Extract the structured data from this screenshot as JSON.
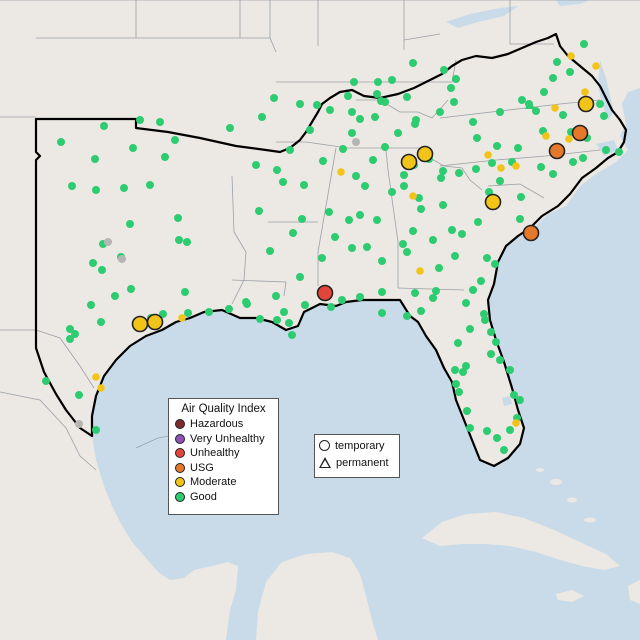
{
  "colors": {
    "water": "#c9dbe9",
    "land": "#ece8e3",
    "border": "#9aa0a8",
    "outline": "#000000",
    "hazardous": "#7e2a2a",
    "very_unhealthy": "#8f4fb5",
    "unhealthy": "#e2463a",
    "usg": "#e6782c",
    "moderate": "#f2c417",
    "good": "#2ecc71",
    "no_data": "#b5b5b5"
  },
  "legend": {
    "title": "Air Quality Index",
    "items": [
      {
        "key": "hazardous",
        "label": "Hazardous"
      },
      {
        "key": "very_unhealthy",
        "label": "Very Unhealthy"
      },
      {
        "key": "unhealthy",
        "label": "Unhealthy"
      },
      {
        "key": "usg",
        "label": "USG"
      },
      {
        "key": "moderate",
        "label": "Moderate"
      },
      {
        "key": "good",
        "label": "Good"
      }
    ]
  },
  "type_legend": {
    "temporary": "temporary",
    "permanent": "permanent"
  }
}
